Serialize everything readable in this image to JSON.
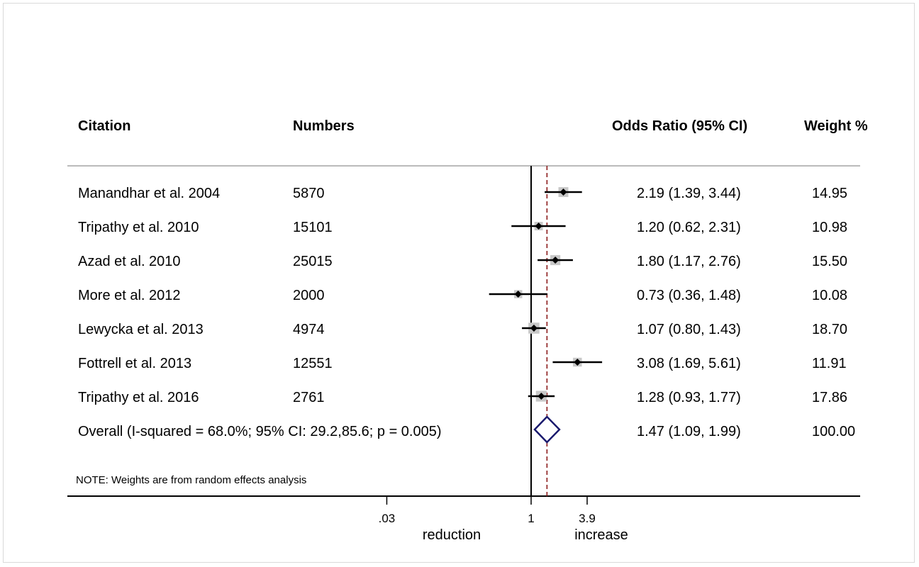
{
  "chart_data": {
    "type": "forest",
    "columns": {
      "citation": "Citation",
      "numbers": "Numbers",
      "or": "Odds Ratio (95% CI)",
      "weight": "Weight %"
    },
    "studies": [
      {
        "citation": "Manandhar et al. 2004",
        "numbers": "5870",
        "or_label": "2.19 (1.39, 3.44)",
        "weight_label": "14.95",
        "or": 2.19,
        "lo": 1.39,
        "hi": 3.44,
        "weight": 14.95
      },
      {
        "citation": "Tripathy et al. 2010",
        "numbers": "15101",
        "or_label": "1.20 (0.62, 2.31)",
        "weight_label": "10.98",
        "or": 1.2,
        "lo": 0.62,
        "hi": 2.31,
        "weight": 10.98
      },
      {
        "citation": "Azad et al. 2010",
        "numbers": "25015",
        "or_label": "1.80 (1.17, 2.76)",
        "weight_label": "15.50",
        "or": 1.8,
        "lo": 1.17,
        "hi": 2.76,
        "weight": 15.5
      },
      {
        "citation": "More et al. 2012",
        "numbers": "2000",
        "or_label": "0.73 (0.36, 1.48)",
        "weight_label": "10.08",
        "or": 0.73,
        "lo": 0.36,
        "hi": 1.48,
        "weight": 10.08
      },
      {
        "citation": "Lewycka et al. 2013",
        "numbers": "4974",
        "or_label": "1.07 (0.80, 1.43)",
        "weight_label": "18.70",
        "or": 1.07,
        "lo": 0.8,
        "hi": 1.43,
        "weight": 18.7
      },
      {
        "citation": "Fottrell et al. 2013",
        "numbers": "12551",
        "or_label": "3.08 (1.69, 5.61)",
        "weight_label": "11.91",
        "or": 3.08,
        "lo": 1.69,
        "hi": 5.61,
        "weight": 11.91
      },
      {
        "citation": "Tripathy et al. 2016",
        "numbers": "2761",
        "or_label": "1.28 (0.93, 1.77)",
        "weight_label": "17.86",
        "or": 1.28,
        "lo": 0.93,
        "hi": 1.77,
        "weight": 17.86
      }
    ],
    "overall": {
      "label": "Overall  (I-squared = 68.0%; 95% CI: 29.2,85.6; p = 0.005)",
      "or_label": "1.47 (1.09, 1.99)",
      "weight_label": "100.00",
      "or": 1.47,
      "lo": 1.09,
      "hi": 1.99
    },
    "note": "NOTE: Weights are from random effects analysis",
    "x_axis": {
      "scale": "log",
      "ticks": [
        {
          "value": 0.03,
          "label": ".03"
        },
        {
          "value": 1,
          "label": "1"
        },
        {
          "value": 3.9,
          "label": "3.9"
        }
      ],
      "left_label": "reduction",
      "right_label": "increase",
      "null_value": 1
    },
    "colors": {
      "overall_line": "#8b1a1a",
      "diamond": "#1a1a6e",
      "weight_box": "#c8c8c8"
    }
  }
}
